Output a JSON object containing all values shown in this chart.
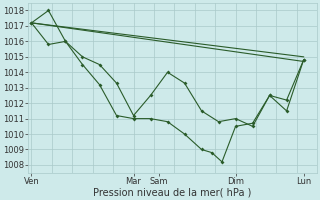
{
  "xlabel": "Pression niveau de la mer( hPa )",
  "ylim": [
    1007.5,
    1018.5
  ],
  "yticks": [
    1008,
    1009,
    1010,
    1011,
    1012,
    1013,
    1014,
    1015,
    1016,
    1017,
    1018
  ],
  "bg_color": "#ceeaea",
  "line_color": "#2a5c2a",
  "grid_color": "#aacaca",
  "xtick_labels": [
    "Ven",
    "Mar",
    "Sam",
    "Dim",
    "Lun"
  ],
  "xtick_positions": [
    0.0,
    3.0,
    3.75,
    6.0,
    8.0
  ],
  "xlim": [
    -0.1,
    8.4
  ],
  "series_straight1": {
    "x": [
      0.0,
      8.0
    ],
    "y": [
      1017.2,
      1015.0
    ]
  },
  "series_straight2": {
    "x": [
      0.0,
      8.0
    ],
    "y": [
      1017.2,
      1014.7
    ]
  },
  "series_zigzag1": {
    "x": [
      0.0,
      0.5,
      1.0,
      1.5,
      2.0,
      2.5,
      3.0,
      3.5,
      4.0,
      4.5,
      5.0,
      5.5,
      6.0,
      6.5,
      7.0,
      7.5,
      8.0
    ],
    "y": [
      1017.2,
      1018.0,
      1016.0,
      1015.0,
      1014.5,
      1013.3,
      1011.2,
      1012.5,
      1014.0,
      1013.3,
      1011.5,
      1010.8,
      1011.0,
      1010.5,
      1012.5,
      1012.2,
      1014.8
    ]
  },
  "series_zigzag2": {
    "x": [
      0.0,
      0.5,
      1.0,
      1.5,
      2.0,
      2.5,
      3.0,
      3.5,
      4.0,
      4.5,
      5.0,
      5.3,
      5.6,
      6.0,
      6.5,
      7.0,
      7.5,
      8.0
    ],
    "y": [
      1017.2,
      1015.8,
      1016.0,
      1014.5,
      1013.2,
      1011.2,
      1011.0,
      1011.0,
      1010.8,
      1010.0,
      1009.0,
      1008.8,
      1008.2,
      1010.5,
      1010.7,
      1012.5,
      1011.5,
      1014.8
    ]
  }
}
